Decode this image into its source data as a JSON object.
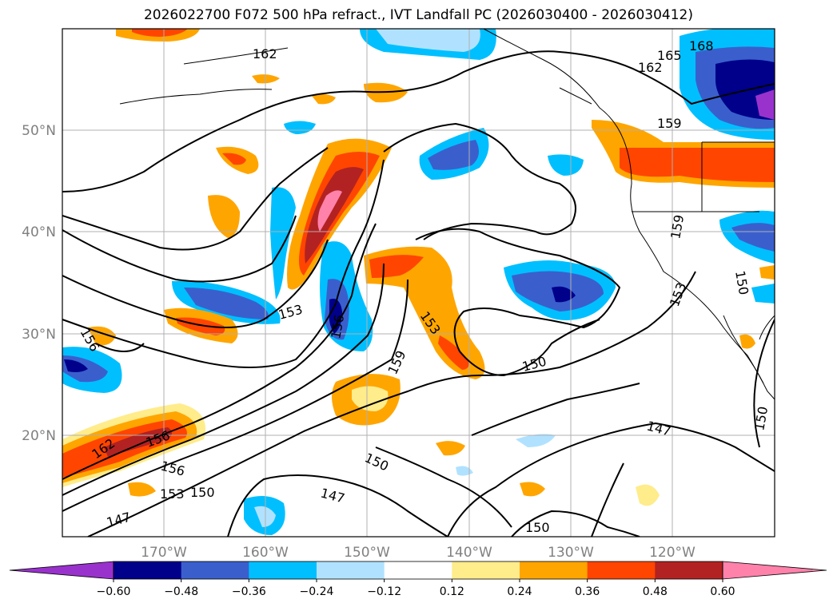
{
  "title": "2026022700 F072 500 hPa refract., IVT Landfall PC (2026030400 - 2026030412)",
  "lon_ticks": [
    "170°W",
    "160°W",
    "150°W",
    "140°W",
    "130°W",
    "120°W"
  ],
  "lat_ticks": [
    "50°N",
    "40°N",
    "30°N",
    "20°N"
  ],
  "contour_labels": [
    "162",
    "165",
    "168",
    "162",
    "159",
    "159",
    "150",
    "153",
    "156",
    "153",
    "156",
    "159",
    "153",
    "150",
    "147",
    "150",
    "162",
    "156",
    "156",
    "153",
    "150",
    "147",
    "150",
    "147",
    "150"
  ],
  "colorbar": {
    "colors": [
      "#9932cc",
      "#00008b",
      "#3a5fcd",
      "#00bfff",
      "#b0e2ff",
      "#ffffff",
      "#ffec8b",
      "#ffa500",
      "#ff4500",
      "#b22222",
      "#ff82ab"
    ],
    "tick_labels": [
      "−0.60",
      "−0.48",
      "−0.36",
      "−0.24",
      "−0.12",
      "0.12",
      "0.24",
      "0.36",
      "0.48",
      "0.60"
    ]
  }
}
